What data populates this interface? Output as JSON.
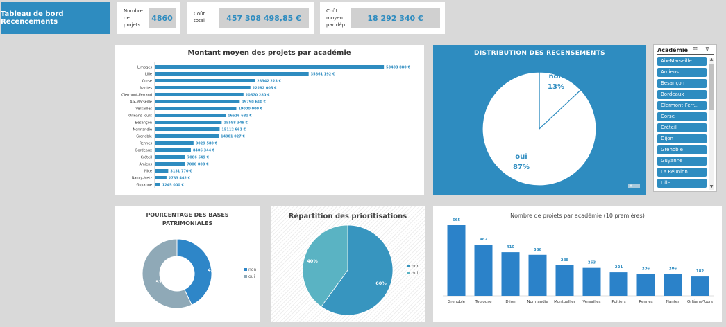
{
  "header": {
    "title": "Tableau de bord Recencements",
    "kpis": [
      {
        "label_lines": [
          "Nombre",
          "de",
          "projets"
        ],
        "value": "4860"
      },
      {
        "label_lines": [
          "Coût",
          "total"
        ],
        "value": "457 308 498,85 €"
      },
      {
        "label_lines": [
          "Coût",
          "moyen",
          "par dép"
        ],
        "value": "18 292 340 €"
      }
    ]
  },
  "chart_data": [
    {
      "type": "bar",
      "orientation": "horizontal",
      "title": "Montant moyen des projets par académie",
      "color": "#2e8cc0",
      "categories": [
        "Limoges",
        "Lille",
        "Corse",
        "Nantes",
        "Clermont-Ferrand",
        "Aix-Marseille",
        "Versailles",
        "Orléans-Tours",
        "Besançon",
        "Normandie",
        "Grenoble",
        "Rennes",
        "Bordeaux",
        "Créteil",
        "Amiens",
        "Nice",
        "Nancy-Metz",
        "Guyanne"
      ],
      "values": [
        53403880,
        35861192,
        23342223,
        22282005,
        20670280,
        19790610,
        19000000,
        16516681,
        15588349,
        15112661,
        14901027,
        9029580,
        8406344,
        7086549,
        7000000,
        3131770,
        2733442,
        1245000
      ],
      "data_labels": [
        "53403 880 €",
        "35861 192 €",
        "23342 223 €",
        "22282 005 €",
        "20670 280 €",
        "19790 610 €",
        "19000 000 €",
        "16516 681 €",
        "15588 349 €",
        "15112 661 €",
        "14901 027 €",
        "9029 580 €",
        "8406 344 €",
        "7086 549 €",
        "7000 000 €",
        "3131 770 €",
        "2733 442 €",
        "1245 000 €"
      ]
    },
    {
      "type": "pie",
      "title": "DISTRIBUTION DES RECENSEMENTS",
      "background": "#2e8cc0",
      "labels": [
        "non",
        "oui"
      ],
      "values": [
        13,
        87
      ],
      "value_labels": [
        "13%",
        "87%"
      ]
    },
    {
      "type": "pie",
      "subtype": "donut",
      "title_lines": [
        "POURCENTAGE DES BASES",
        "PATRIMONIALES"
      ],
      "labels": [
        "non",
        "oui"
      ],
      "values": [
        43,
        57
      ],
      "value_labels": [
        "43%",
        "57%"
      ],
      "colors": [
        "#2e86c8",
        "#8fa9b7"
      ]
    },
    {
      "type": "pie",
      "title": "Répartition des prioritisations",
      "labels": [
        "non",
        "oui"
      ],
      "values": [
        60,
        40
      ],
      "value_labels": [
        "60%",
        "40%"
      ],
      "colors": [
        "#3795bf",
        "#5ab3c3"
      ]
    },
    {
      "type": "bar",
      "title": "Nombre de projets par académie (10 premières)",
      "color": "#2b82c9",
      "categories": [
        "Grenoble",
        "Toulouse",
        "Dijon",
        "Normandie",
        "Montpellier",
        "Versailles",
        "Poitiers",
        "Rennes",
        "Nantes",
        "Orléans-Tours"
      ],
      "values": [
        665,
        482,
        410,
        386,
        288,
        263,
        221,
        206,
        206,
        182
      ]
    }
  ],
  "slicer": {
    "title": "Académie",
    "items": [
      "Aix-Marseille",
      "Amiens",
      "Besançon",
      "Bordeaux",
      "Clermont-Ferr...",
      "Corse",
      "Créteil",
      "Dijon",
      "Grenoble",
      "Guyanne",
      "La Réunion",
      "Lille"
    ]
  },
  "icons": {
    "multiselect": "multiselect-icon",
    "clear_filter": "clear-filter-icon"
  }
}
